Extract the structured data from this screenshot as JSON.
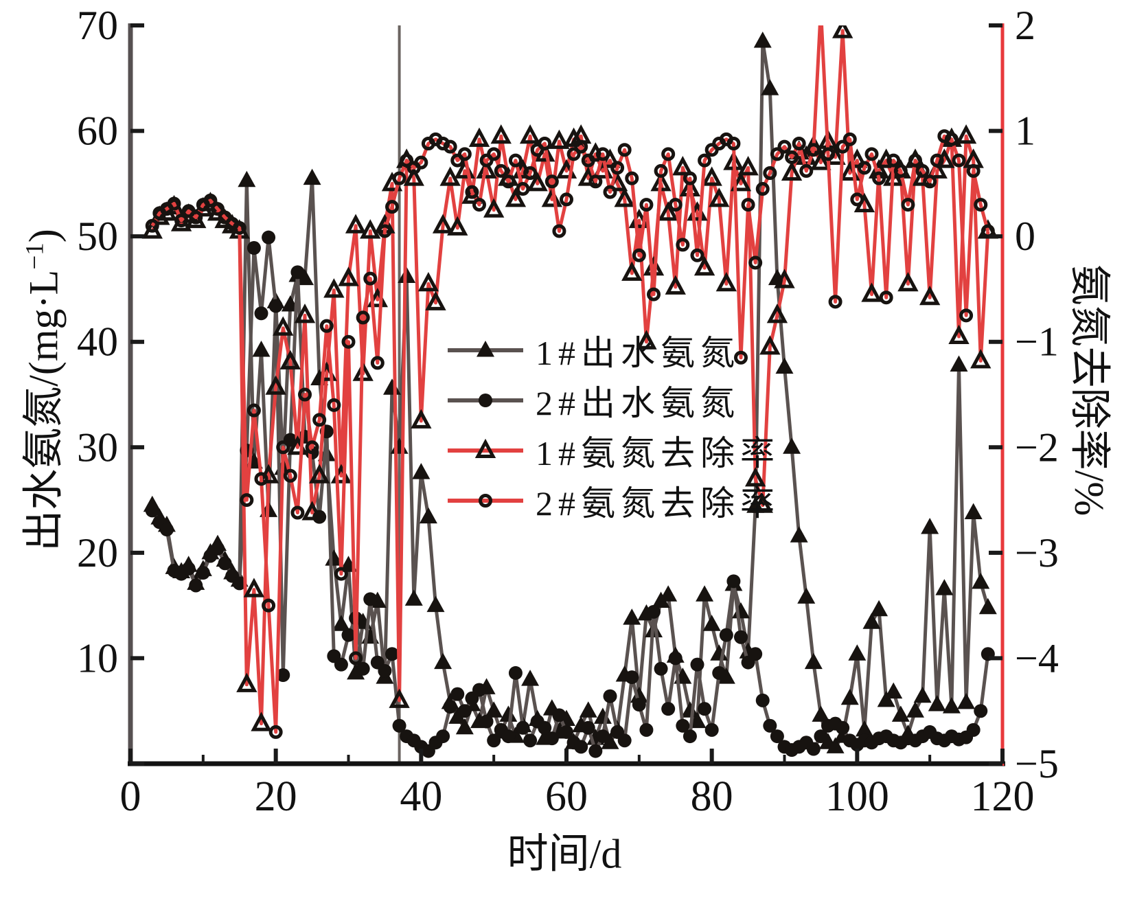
{
  "axes": {
    "y_left": {
      "title_prefix": "出水氨氮/(mg·L",
      "title_sup": "−1",
      "title_suffix": ")",
      "min": 0,
      "max": 70,
      "tick_step": 10,
      "tick_labels": [
        "10",
        "20",
        "30",
        "40",
        "50",
        "60",
        "70"
      ]
    },
    "y_right": {
      "title": "氨氮去除率/%",
      "min": -5,
      "max": 2,
      "tick_step": 1,
      "tick_labels": [
        "-5",
        "-4",
        "-3",
        "-2",
        "-1",
        "0",
        "1",
        "2"
      ]
    },
    "x": {
      "title": "时间/d",
      "min": 0,
      "max": 120,
      "major_step": 20,
      "minor_step": 10,
      "tick_labels": [
        "0",
        "20",
        "40",
        "60",
        "80",
        "100",
        "120"
      ]
    }
  },
  "colors": {
    "dark_line": "#5a5250",
    "marker_black": "#171310",
    "red_line": "#e24140",
    "right_axis": "#e8393c",
    "left_axis": "#565051",
    "bottom_axis": "#121212",
    "divider": "#6b6561"
  },
  "legend": {
    "items": [
      {
        "label": "1#出水氨氮",
        "marker": "tri-filled",
        "line_color": "#5a5250"
      },
      {
        "label": "2#出水氨氮",
        "marker": "circ-filled",
        "line_color": "#5a5250"
      },
      {
        "label": "1#氨氮去除率",
        "marker": "tri-open",
        "line_color": "#e24140"
      },
      {
        "label": "2#氨氮去除率",
        "marker": "circ-open",
        "line_color": "#e24140"
      }
    ]
  },
  "divider_day": 37,
  "chart_data": {
    "type": "line",
    "xlabel": "时间/d",
    "ylabel_left": "出水氨氮/(mg·L−1)",
    "ylabel_right": "氨氮去除率/%",
    "x_range": [
      0,
      120
    ],
    "y_left_range": [
      0,
      70
    ],
    "y_right_range": [
      -5,
      2
    ],
    "grid": false,
    "legend_position": "center",
    "x_start_day": 3,
    "series": [
      {
        "name": "1#出水氨氮",
        "axis": "left",
        "marker": "tri-filled",
        "color": "#5a5250",
        "values": [
          24.5,
          23.3,
          22.6,
          18.6,
          18.2,
          18.8,
          17.1,
          18.4,
          20.0,
          20.8,
          19.3,
          18.1,
          17.4,
          55.3,
          28.6,
          39.2,
          24.0,
          43.8,
          28.0,
          43.5,
          46.3,
          46.0,
          55.5,
          36.5,
          29.3,
          19.4,
          13.2,
          18.8,
          8.6,
          13.4,
          12.0,
          15.4,
          8.2,
          35.6,
          30.0,
          46.2,
          15.6,
          27.6,
          23.4,
          15.0,
          9.6,
          5.8,
          4.4,
          3.4,
          5.6,
          4.0,
          7.2,
          5.0,
          3.0,
          4.6,
          2.6,
          3.6,
          8.0,
          4.2,
          2.4,
          5.2,
          3.0,
          4.2,
          2.0,
          3.6,
          5.0,
          2.4,
          4.4,
          2.0,
          3.2,
          8.4,
          13.8,
          6.4,
          14.2,
          12.6,
          15.4,
          16.0,
          10.2,
          8.2,
          5.0,
          4.0,
          16.0,
          13.2,
          10.4,
          8.2,
          17.0,
          14.4,
          10.6,
          24.4,
          68.5,
          64.0,
          46.0,
          37.6,
          30.0,
          21.6,
          15.8,
          9.6,
          4.6,
          2.0,
          1.6,
          2.6,
          6.2,
          10.4,
          3.2,
          13.4,
          14.6,
          6.0,
          6.8,
          4.6,
          2.8,
          5.0,
          6.4,
          22.4,
          5.6,
          16.6,
          5.4,
          37.8,
          5.8,
          23.8,
          17.2,
          14.8
        ]
      },
      {
        "name": "2#出水氨氮",
        "axis": "left",
        "marker": "circ-filled",
        "color": "#5a5250",
        "values": [
          24.0,
          22.9,
          22.2,
          18.3,
          18.0,
          18.5,
          16.9,
          18.1,
          19.7,
          20.4,
          19.0,
          17.8,
          17.1,
          29.7,
          48.9,
          42.7,
          49.9,
          43.4,
          8.4,
          30.7,
          46.6,
          31.0,
          29.5,
          23.4,
          31.5,
          10.2,
          9.4,
          12.2,
          13.8,
          9.0,
          15.6,
          9.6,
          8.8,
          10.4,
          3.6,
          2.6,
          2.2,
          1.6,
          1.2,
          2.0,
          2.6,
          5.4,
          6.6,
          5.0,
          6.2,
          7.0,
          4.0,
          2.2,
          3.2,
          2.6,
          8.6,
          3.4,
          2.2,
          4.0,
          3.4,
          2.4,
          4.6,
          3.0,
          2.0,
          1.6,
          3.4,
          1.2,
          2.6,
          6.4,
          3.0,
          2.2,
          8.2,
          5.6,
          3.2,
          14.4,
          9.0,
          5.2,
          10.0,
          3.6,
          2.6,
          9.4,
          5.2,
          3.2,
          8.6,
          12.2,
          17.3,
          12.0,
          9.6,
          10.4,
          6.0,
          3.6,
          2.6,
          1.6,
          1.3,
          1.6,
          2.0,
          1.4,
          2.6,
          3.6,
          3.8,
          3.4,
          2.2,
          1.8,
          2.2,
          2.0,
          2.4,
          2.6,
          2.2,
          2.0,
          2.4,
          2.2,
          2.6,
          3.0,
          2.4,
          2.2,
          2.6,
          2.3,
          2.5,
          3.2,
          5.0,
          10.4
        ]
      },
      {
        "name": "1#氨氮去除率",
        "axis": "right",
        "marker": "tri-open",
        "color": "#e24140",
        "values": [
          0.05,
          0.18,
          0.22,
          0.28,
          0.12,
          0.2,
          0.15,
          0.26,
          0.31,
          0.22,
          0.15,
          0.1,
          0.05,
          -4.25,
          -3.35,
          -4.62,
          -2.27,
          -1.43,
          -0.87,
          -1.19,
          -2.0,
          -0.75,
          -2.62,
          -2.27,
          -1.3,
          -0.51,
          -2.27,
          -0.4,
          0.1,
          -1.3,
          0.05,
          -0.6,
          0.1,
          0.5,
          -4.4,
          0.72,
          0.55,
          -1.75,
          -0.45,
          -0.63,
          0.1,
          0.55,
          0.08,
          0.62,
          0.38,
          0.92,
          0.62,
          0.25,
          0.95,
          0.55,
          0.35,
          0.62,
          0.95,
          0.5,
          0.78,
          0.35,
          0.9,
          0.62,
          0.92,
          0.95,
          0.55,
          0.78,
          0.62,
          0.72,
          0.5,
          0.35,
          -0.35,
          0.15,
          -1.0,
          -0.3,
          0.5,
          0.22,
          -0.48,
          0.65,
          0.45,
          0.22,
          -0.3,
          0.55,
          0.35,
          -0.45,
          0.7,
          0.5,
          0.65,
          -2.3,
          -2.55,
          -1.05,
          -0.75,
          -0.42,
          0.6,
          0.8,
          0.75,
          0.85,
          0.7,
          0.9,
          0.75,
          1.95,
          0.6,
          0.72,
          0.3,
          -0.55,
          0.62,
          0.72,
          0.55,
          0.62,
          -0.45,
          0.72,
          0.55,
          -0.58,
          0.62,
          0.72,
          0.92,
          -0.95,
          0.95,
          0.72,
          -1.18,
          0.05
        ]
      },
      {
        "name": "2#氨氮去除率",
        "axis": "right",
        "marker": "circ-open",
        "color": "#e24140",
        "values": [
          0.1,
          0.22,
          0.26,
          0.31,
          0.15,
          0.24,
          0.18,
          0.3,
          0.34,
          0.26,
          0.18,
          0.12,
          0.08,
          -2.5,
          -1.65,
          -2.3,
          -3.5,
          -4.7,
          -2.0,
          -2.27,
          -2.62,
          -1.5,
          -2.0,
          -1.74,
          -0.85,
          -1.6,
          -3.2,
          -1.0,
          -4.0,
          -0.77,
          -0.4,
          -1.2,
          0.05,
          0.28,
          0.55,
          0.72,
          0.65,
          0.7,
          0.88,
          0.92,
          0.88,
          0.85,
          0.72,
          0.78,
          0.42,
          0.3,
          0.72,
          0.78,
          0.62,
          0.52,
          0.72,
          0.45,
          0.6,
          0.82,
          0.88,
          0.52,
          0.05,
          0.35,
          0.78,
          0.85,
          0.72,
          0.52,
          0.78,
          0.42,
          0.65,
          0.82,
          0.55,
          -0.18,
          0.3,
          -0.55,
          0.62,
          0.78,
          0.3,
          -0.08,
          0.55,
          -0.18,
          0.72,
          0.82,
          0.88,
          0.92,
          0.88,
          -1.15,
          0.3,
          -0.25,
          0.45,
          0.6,
          0.78,
          0.85,
          0.75,
          0.88,
          0.62,
          0.82,
          2.15,
          0.78,
          -0.62,
          0.85,
          0.92,
          0.35,
          0.65,
          0.78,
          0.55,
          -0.58,
          0.72,
          0.62,
          0.3,
          0.72,
          0.62,
          0.52,
          0.72,
          0.95,
          0.92,
          0.72,
          -0.75,
          0.62,
          0.3,
          0.05
        ]
      }
    ]
  }
}
